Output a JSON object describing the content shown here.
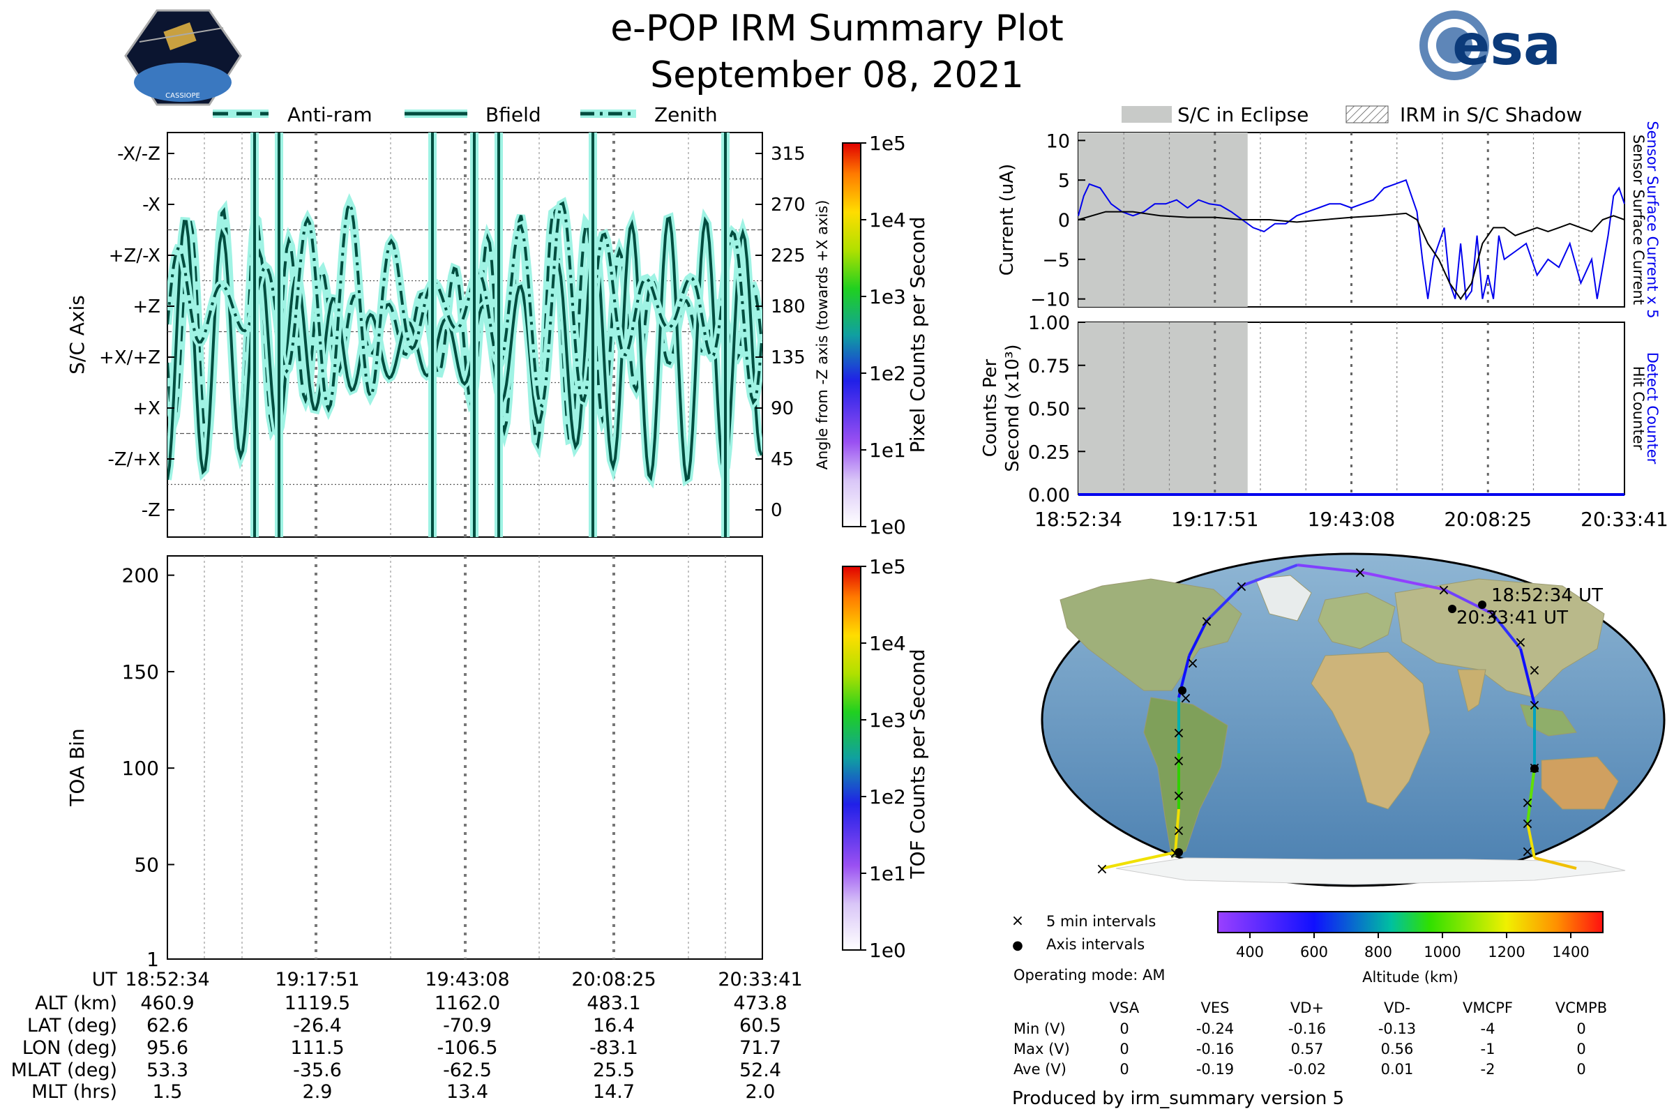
{
  "header": {
    "title": "e-POP IRM Summary Plot",
    "date": "September 08, 2021",
    "esa_logo_text": "esa",
    "cassiope_logo_text": "CASSIOPE"
  },
  "legend_top": {
    "antiram": "Anti-ram",
    "bfield": "Bfield",
    "zenith": "Zenith",
    "eclipse": "S/C in Eclipse",
    "shadow": "IRM in S/C Shadow"
  },
  "chart_data": [
    {
      "id": "sc-axis",
      "type": "line",
      "ylabel": "S/C Axis",
      "ylabel_right": "Angle from -Z axis (towards +X axis)",
      "yticks_left": [
        "-X/-Z",
        "-X",
        "+Z/-X",
        "+Z",
        "+X/+Z",
        "+X",
        "-Z/+X",
        "-Z"
      ],
      "yticks_right": [
        "315",
        "270",
        "225",
        "180",
        "135",
        "90",
        "45",
        "0"
      ],
      "ylim": [
        -15,
        337
      ],
      "colorbar": {
        "label": "Pixel Counts per Second",
        "ticks": [
          "1e0",
          "1e1",
          "1e2",
          "1e3",
          "1e4",
          "1e5"
        ]
      },
      "series": [
        {
          "name": "Anti-ram",
          "style": "dashed",
          "color": "#004d3f"
        },
        {
          "name": "Bfield",
          "style": "solid",
          "color": "#004d3f"
        },
        {
          "name": "Zenith",
          "style": "dash-dot",
          "color": "#004d3f"
        }
      ]
    },
    {
      "id": "toa",
      "type": "heatmap",
      "ylabel": "TOA Bin",
      "yticks": [
        "1",
        "50",
        "100",
        "150",
        "200"
      ],
      "ylim": [
        1,
        210
      ],
      "values": [],
      "colorbar": {
        "label": "TOF Counts per Second",
        "ticks": [
          "1e0",
          "1e1",
          "1e2",
          "1e3",
          "1e4",
          "1e5"
        ]
      }
    },
    {
      "id": "current",
      "type": "line",
      "ylabel": "Current (uA)",
      "ylim": [
        -11,
        11
      ],
      "yticks": [
        "10",
        "5",
        "0",
        "−5",
        "−10"
      ],
      "right_label_blue": "Sensor Surface Current x 5",
      "right_label_black": "Sensor Surface Current",
      "eclipse_fraction": [
        0.0,
        0.31
      ],
      "series": [
        {
          "name": "Sensor Surface Current x 5",
          "color": "#0000ee",
          "x": [
            0,
            0.01,
            0.02,
            0.04,
            0.06,
            0.08,
            0.1,
            0.12,
            0.14,
            0.16,
            0.18,
            0.2,
            0.22,
            0.24,
            0.26,
            0.28,
            0.3,
            0.32,
            0.34,
            0.36,
            0.38,
            0.4,
            0.42,
            0.44,
            0.46,
            0.48,
            0.5,
            0.52,
            0.54,
            0.56,
            0.58,
            0.6,
            0.62,
            0.63,
            0.64,
            0.65,
            0.66,
            0.67,
            0.68,
            0.69,
            0.7,
            0.71,
            0.72,
            0.73,
            0.74,
            0.75,
            0.76,
            0.77,
            0.78,
            0.8,
            0.82,
            0.84,
            0.86,
            0.88,
            0.9,
            0.92,
            0.94,
            0.95,
            0.96,
            0.97,
            0.98,
            0.99,
            1.0
          ],
          "values": [
            0.5,
            3,
            4.5,
            4,
            2,
            1,
            0.5,
            1,
            2,
            2,
            2.5,
            1.5,
            2.5,
            2,
            1.8,
            1,
            0,
            -1,
            -1.5,
            -0.5,
            -0.5,
            0.5,
            1,
            1.5,
            2,
            2,
            1.5,
            2,
            2.5,
            4,
            4.5,
            5,
            1,
            -5,
            -10,
            -5,
            -3,
            -1,
            -8,
            -10,
            -3,
            -10,
            -9,
            -2,
            -10,
            -7,
            -10,
            -2,
            -5,
            -4,
            -3,
            -7,
            -5,
            -6,
            -3,
            -8,
            -5,
            -10,
            -6,
            -2,
            3,
            4,
            2
          ]
        },
        {
          "name": "Sensor Surface Current",
          "color": "#000000",
          "x": [
            0,
            0.05,
            0.1,
            0.15,
            0.2,
            0.25,
            0.3,
            0.35,
            0.4,
            0.45,
            0.5,
            0.55,
            0.6,
            0.62,
            0.64,
            0.66,
            0.68,
            0.7,
            0.72,
            0.74,
            0.76,
            0.78,
            0.8,
            0.82,
            0.84,
            0.86,
            0.88,
            0.9,
            0.92,
            0.94,
            0.96,
            0.98,
            1.0
          ],
          "values": [
            0,
            1,
            1,
            0.5,
            0.3,
            0.3,
            0,
            0,
            -0.3,
            0,
            0.3,
            0.5,
            0.8,
            0,
            -3,
            -5,
            -8,
            -10,
            -8,
            -3,
            -1,
            -1,
            -2,
            -1.5,
            -1,
            -1.5,
            -1,
            -0.5,
            -1,
            -1.5,
            0,
            0.5,
            0
          ]
        }
      ]
    },
    {
      "id": "counts",
      "type": "line",
      "ylabel": "Counts Per Second (x10³)",
      "ylim": [
        0,
        1
      ],
      "yticks": [
        "1.00",
        "0.75",
        "0.50",
        "0.25",
        "0.00"
      ],
      "right_label_blue": "Detect Counter",
      "right_label_black": "Hit Counter",
      "eclipse_fraction": [
        0.0,
        0.31
      ],
      "xticks": [
        "18:52:34",
        "19:17:51",
        "19:43:08",
        "20:08:25",
        "20:33:41"
      ],
      "series": [
        {
          "name": "Detect Counter",
          "color": "#0000ee",
          "x": [
            0,
            1
          ],
          "values": [
            0,
            0
          ]
        }
      ]
    },
    {
      "id": "map",
      "type": "scatter",
      "start_label": "18:52:34 UT",
      "end_label": "20:33:41 UT",
      "colorbar": {
        "label": "Altitude (km)",
        "ticks": [
          "400",
          "600",
          "800",
          "1000",
          "1200",
          "1400"
        ],
        "range": [
          300,
          1500
        ]
      }
    }
  ],
  "map_legend": {
    "five_min": "5 min intervals",
    "axis": "Axis intervals",
    "mode": "Operating mode: AM",
    "marker_x": "×",
    "marker_dot": "●"
  },
  "ut_table": {
    "labels": [
      "UT",
      "ALT (km)",
      "LAT (deg)",
      "LON (deg)",
      "MLAT (deg)",
      "MLT (hrs)"
    ],
    "columns": [
      [
        "18:52:34",
        "460.9",
        "62.6",
        "95.6",
        "53.3",
        "1.5"
      ],
      [
        "19:17:51",
        "1119.5",
        "-26.4",
        "111.5",
        "-35.6",
        "2.9"
      ],
      [
        "19:43:08",
        "1162.0",
        "-70.9",
        "-106.5",
        "-62.5",
        "13.4"
      ],
      [
        "20:08:25",
        "483.1",
        "16.4",
        "-83.1",
        "25.5",
        "14.7"
      ],
      [
        "20:33:41",
        "473.8",
        "60.5",
        "71.7",
        "52.4",
        "2.0"
      ]
    ]
  },
  "voltage_table": {
    "headers": [
      "VSA",
      "VES",
      "VD+",
      "VD-",
      "VMCPF",
      "VCMPB"
    ],
    "rows": [
      {
        "label": "Min (V)",
        "values": [
          "0",
          "-0.24",
          "-0.16",
          "-0.13",
          "-4",
          "0"
        ]
      },
      {
        "label": "Max (V)",
        "values": [
          "0",
          "-0.16",
          "0.57",
          "0.56",
          "-1",
          "0"
        ]
      },
      {
        "label": "Ave (V)",
        "values": [
          "0",
          "-0.19",
          "-0.02",
          "0.01",
          "-2",
          "0"
        ]
      }
    ]
  },
  "footer": "Produced by irm_summary version 5"
}
